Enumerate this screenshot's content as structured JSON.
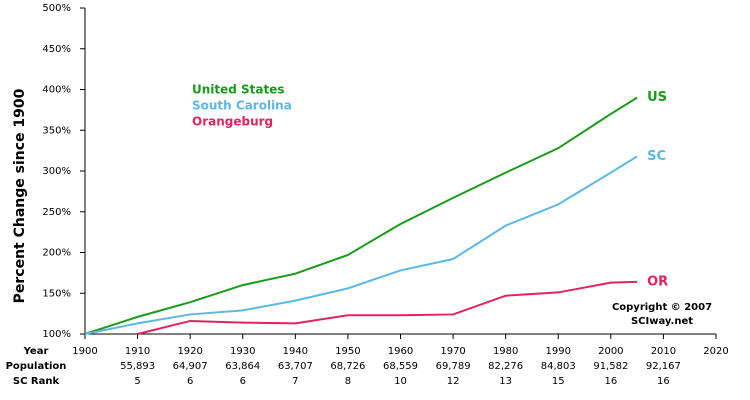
{
  "chart_data": {
    "type": "line",
    "y_label": "Percent Change since 1900",
    "xlim": [
      1900,
      2020
    ],
    "xticks": [
      1900,
      1910,
      1920,
      1930,
      1940,
      1950,
      1960,
      1970,
      1980,
      1990,
      2000,
      2010,
      2020
    ],
    "ylim": [
      100,
      500
    ],
    "yticks": [
      {
        "value": 100,
        "label": "100%"
      },
      {
        "value": 150,
        "label": "150%"
      },
      {
        "value": 200,
        "label": "200%"
      },
      {
        "value": 250,
        "label": "250%"
      },
      {
        "value": 300,
        "label": "300%"
      },
      {
        "value": 350,
        "label": "350%"
      },
      {
        "value": 400,
        "label": "400%"
      },
      {
        "value": 450,
        "label": "450%"
      },
      {
        "value": 500,
        "label": "500%"
      }
    ],
    "grid": false,
    "x": [
      1900,
      1910,
      1920,
      1930,
      1940,
      1950,
      1960,
      1970,
      1980,
      1990,
      2000,
      2005
    ],
    "series": [
      {
        "name": "United States",
        "end_label": "US",
        "color": "#1a9a1a",
        "values": [
          100,
          121,
          139,
          160,
          174,
          197,
          235,
          267,
          298,
          328,
          370,
          390
        ]
      },
      {
        "name": "South Carolina",
        "end_label": "SC",
        "color": "#5bb8e6",
        "values": [
          100,
          113,
          124,
          129,
          141,
          156,
          178,
          192,
          233,
          259,
          298,
          318
        ]
      },
      {
        "name": "Orangeburg",
        "end_label": "OR",
        "color": "#e0245e",
        "values": [
          null,
          100,
          116,
          114,
          113,
          123,
          123,
          124,
          147,
          151,
          163,
          164
        ]
      }
    ],
    "table": {
      "year_label": "Year",
      "population_label": "Population",
      "population": [
        "55,893",
        "64,907",
        "63,864",
        "63,707",
        "68,726",
        "68,559",
        "69,789",
        "82,276",
        "84,803",
        "91,582",
        "92,167"
      ],
      "rank_label": "SC Rank",
      "rank": [
        "5",
        "6",
        "6",
        "7",
        "8",
        "10",
        "12",
        "13",
        "15",
        "16",
        "16"
      ]
    },
    "copyright": "Copyright © 2007",
    "source": "SCIway.net"
  }
}
